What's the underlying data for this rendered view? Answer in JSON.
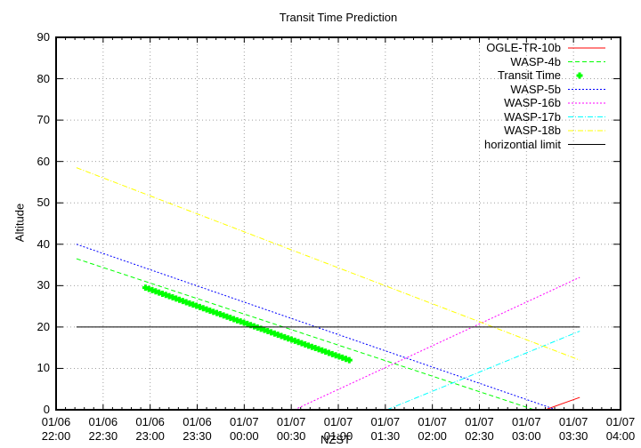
{
  "chart_data": {
    "type": "line",
    "title": "Transit Time Prediction",
    "xlabel": "NZST",
    "ylabel": "Altitude",
    "ylim": [
      0,
      90
    ],
    "yticks": [
      0,
      10,
      20,
      30,
      40,
      50,
      60,
      70,
      80,
      90
    ],
    "xticks": [
      {
        "date": "01/06",
        "time": "22:00"
      },
      {
        "date": "01/06",
        "time": "22:30"
      },
      {
        "date": "01/06",
        "time": "23:00"
      },
      {
        "date": "01/06",
        "time": "23:30"
      },
      {
        "date": "01/07",
        "time": "00:00"
      },
      {
        "date": "01/07",
        "time": "00:30"
      },
      {
        "date": "01/07",
        "time": "01:00"
      },
      {
        "date": "01/07",
        "time": "01:30"
      },
      {
        "date": "01/07",
        "time": "02:00"
      },
      {
        "date": "01/07",
        "time": "02:30"
      },
      {
        "date": "01/07",
        "time": "03:00"
      },
      {
        "date": "01/07",
        "time": "03:30"
      },
      {
        "date": "01/07",
        "time": "04:00"
      }
    ],
    "xlim_minutes_from_2200": [
      0,
      360
    ],
    "grid": true,
    "legend_position": "top-right",
    "series": [
      {
        "name": "OGLE-TR-10b",
        "color": "#ff0000",
        "style": "solid",
        "x_minutes": [
          312,
          334
        ],
        "values": [
          0,
          3
        ]
      },
      {
        "name": "WASP-4b",
        "color": "#00ff00",
        "style": "dashed",
        "x_minutes": [
          13,
          305
        ],
        "values": [
          36.5,
          0
        ]
      },
      {
        "name": "Transit Time",
        "color": "#00ff00",
        "style": "points",
        "x_minutes": [
          57,
          187
        ],
        "values": [
          29.5,
          12
        ]
      },
      {
        "name": "WASP-5b",
        "color": "#0000ff",
        "style": "dotted",
        "x_minutes": [
          13,
          319
        ],
        "values": [
          40,
          0
        ]
      },
      {
        "name": "WASP-16b",
        "color": "#ff00ff",
        "style": "dotted",
        "x_minutes": [
          152,
          334
        ],
        "values": [
          0,
          32
        ]
      },
      {
        "name": "WASP-17b",
        "color": "#00ffff",
        "style": "dashdot",
        "x_minutes": [
          211,
          334
        ],
        "values": [
          0,
          19
        ]
      },
      {
        "name": "WASP-18b",
        "color": "#ffff00",
        "style": "dashdot",
        "x_minutes": [
          13,
          334
        ],
        "values": [
          58.5,
          12
        ]
      },
      {
        "name": "horizontial limit",
        "color": "#000000",
        "style": "solid",
        "x_minutes": [
          13,
          334
        ],
        "values": [
          20,
          20
        ]
      }
    ]
  }
}
